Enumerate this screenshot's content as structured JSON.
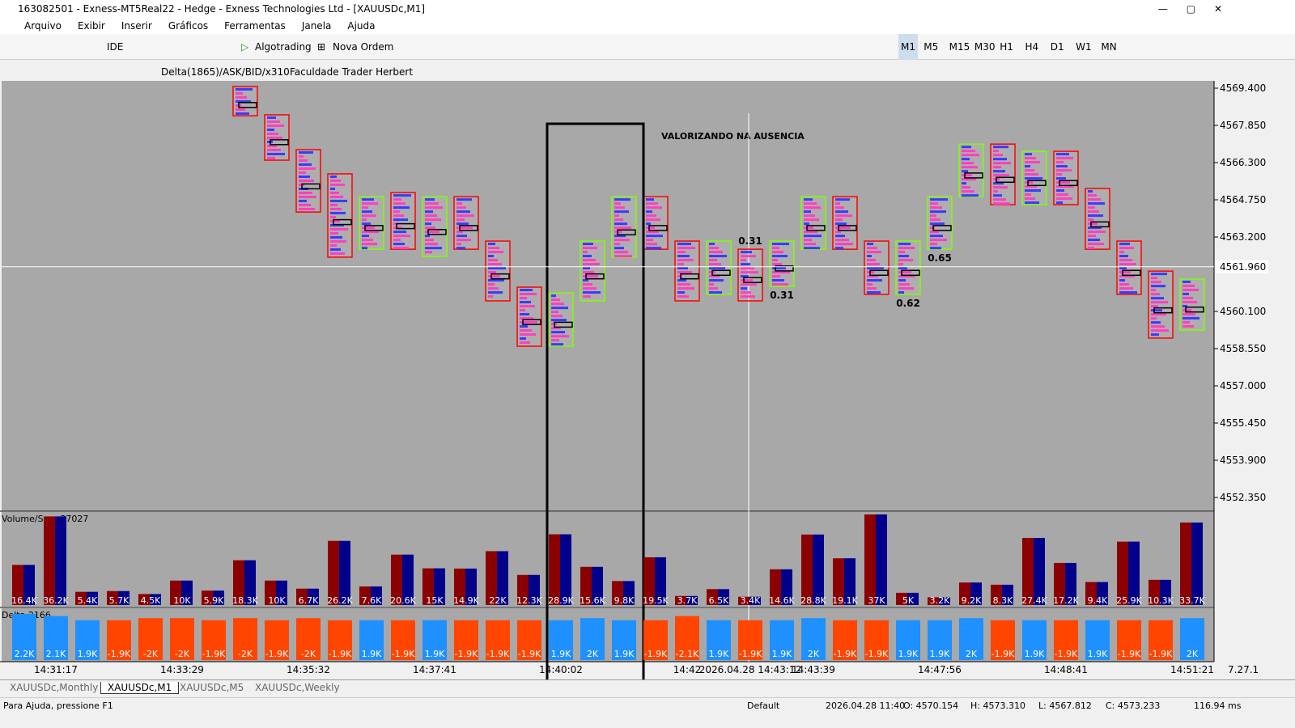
{
  "window_title": "163082501 - Exness-MT5Real22 - Hedge - Exness Technologies Ltd - [XAUUSDc,M1]",
  "menu": [
    "Arquivo",
    "Exibir",
    "Inserir",
    "Gráficos",
    "Ferramentas",
    "Janela",
    "Ajuda"
  ],
  "toolbar": {
    "ide": "IDE",
    "algotrading": "Algotrading",
    "new_order": "Nova Ordem",
    "timeframes": [
      "M1",
      "M5",
      "M15",
      "M30",
      "H1",
      "H4",
      "D1",
      "W1",
      "MN"
    ]
  },
  "indicator_line": [
    "Delta(1865)/ASK/BID/x310",
    "Faculdade Trader Herbert"
  ],
  "price_axis": {
    "ticks": [
      {
        "value": 4569.4,
        "label": "4569.400"
      },
      {
        "value": 4567.85,
        "label": "4567.850"
      },
      {
        "value": 4566.3,
        "label": "4566.300"
      },
      {
        "value": 4564.75,
        "label": "4564.750"
      },
      {
        "value": 4563.2,
        "label": "4563.200"
      },
      {
        "value": 4560.1,
        "label": "4560.100"
      },
      {
        "value": 4558.55,
        "label": "4558.550"
      },
      {
        "value": 4557.0,
        "label": "4557.000"
      },
      {
        "value": 4555.45,
        "label": "4555.450"
      },
      {
        "value": 4553.9,
        "label": "4553.900"
      },
      {
        "value": 4552.35,
        "label": "4552.350"
      }
    ],
    "current": {
      "value": 4561.96,
      "label": "4561.960"
    }
  },
  "annotation": "VALORIZANDO NA AUSENCIA",
  "ratios": [
    {
      "column": 23,
      "text": "0.31",
      "pos": "above"
    },
    {
      "column": 24,
      "text": "0.31",
      "pos": "below"
    },
    {
      "column": 28,
      "text": "0.62",
      "pos": "below"
    },
    {
      "column": 29,
      "text": "0.65",
      "pos": "below"
    }
  ],
  "candles": [
    null,
    null,
    null,
    null,
    null,
    null,
    null,
    {
      "open": 4569.47,
      "close": 4568.25
    },
    {
      "open": 4568.29,
      "close": 4566.4
    },
    {
      "open": 4566.84,
      "close": 4564.24
    },
    {
      "open": 4565.83,
      "close": 4562.36
    },
    {
      "open": 4562.69,
      "close": 4564.88
    },
    {
      "open": 4565.05,
      "close": 4562.69
    },
    {
      "open": 4562.39,
      "close": 4564.88
    },
    {
      "open": 4564.88,
      "close": 4562.69
    },
    {
      "open": 4563.03,
      "close": 4560.54
    },
    {
      "open": 4561.11,
      "close": 4558.65
    },
    {
      "open": 4558.65,
      "close": 4560.87
    },
    {
      "open": 4560.54,
      "close": 4563.03
    },
    {
      "open": 4562.36,
      "close": 4564.88
    },
    {
      "open": 4564.88,
      "close": 4562.69
    },
    {
      "open": 4563.03,
      "close": 4560.54
    },
    {
      "open": 4560.81,
      "close": 4563.03
    },
    {
      "open": 4562.69,
      "close": 4560.54
    },
    {
      "open": 4561.14,
      "close": 4563.03
    },
    {
      "open": 4562.69,
      "close": 4564.88
    },
    {
      "open": 4564.88,
      "close": 4562.69
    },
    {
      "open": 4563.03,
      "close": 4560.81
    },
    {
      "open": 4560.81,
      "close": 4563.03
    },
    {
      "open": 4562.69,
      "close": 4564.88
    },
    {
      "open": 4564.88,
      "close": 4567.07
    },
    {
      "open": 4567.07,
      "close": 4564.55
    },
    {
      "open": 4564.55,
      "close": 4566.77
    },
    {
      "open": 4566.77,
      "close": 4564.55
    },
    {
      "open": 4565.22,
      "close": 4562.69
    },
    {
      "open": 4563.03,
      "close": 4560.81
    },
    {
      "open": 4561.78,
      "close": 4558.99
    },
    {
      "open": 4559.32,
      "close": 4561.45
    }
  ],
  "volume": {
    "label": "Volume/Sep.,37027",
    "values": [
      16400,
      36200,
      5400,
      5700,
      4500,
      10000,
      5900,
      18300,
      10000,
      6700,
      26200,
      7600,
      20600,
      15000,
      14900,
      22000,
      12300,
      28900,
      15600,
      9800,
      19500,
      3700,
      6500,
      3400,
      14600,
      28800,
      19100,
      37000,
      5000,
      3200,
      9200,
      8300,
      27400,
      17200,
      9400,
      25900,
      10300,
      33700
    ],
    "value_labels": [
      "16.4K",
      "36.2K",
      "5.4K",
      "5.7K",
      "4.5K",
      "10K",
      "5.9K",
      "18.3K",
      "10K",
      "6.7K",
      "26.2K",
      "7.6K",
      "20.6K",
      "15K",
      "14.9K",
      "22K",
      "12.3K",
      "28.9K",
      "15.6K",
      "9.8K",
      "19.5K",
      "3.7K",
      "6.5K",
      "3.4K",
      "14.6K",
      "28.8K",
      "19.1K",
      "37K",
      "5K",
      "3.2K",
      "9.2K",
      "8.3K",
      "27.4K",
      "17.2K",
      "9.4K",
      "25.9K",
      "10.3K",
      "33.7K"
    ]
  },
  "delta": {
    "label": "Delta,2166",
    "values": [
      2200,
      2100,
      1900,
      -1900,
      -2000,
      -2000,
      -1900,
      -2000,
      -1900,
      -2000,
      -1900,
      1900,
      -1900,
      1900,
      -1900,
      -1900,
      -1900,
      1900,
      2000,
      1900,
      -1900,
      -2100,
      1900,
      -1900,
      1900,
      2000,
      -1900,
      -1900,
      1900,
      1900,
      2000,
      -1900,
      1900,
      -1900,
      1900,
      -1900,
      -1900,
      2000
    ],
    "value_labels": [
      "2.2K",
      "2.1K",
      "1.9K",
      "-1.9K",
      "-2K",
      "-2K",
      "-1.9K",
      "-2K",
      "-1.9K",
      "-2K",
      "-1.9K",
      "1.9K",
      "-1.9K",
      "1.9K",
      "-1.9K",
      "-1.9K",
      "-1.9K",
      "1.9K",
      "2K",
      "1.9K",
      "-1.9K",
      "-2.1K",
      "1.9K",
      "-1.9K",
      "1.9K",
      "2K",
      "-1.9K",
      "-1.9K",
      "1.9K",
      "1.9K",
      "2K",
      "-1.9K",
      "1.9K",
      "-1.9K",
      "1.9K",
      "-1.9K",
      "-1.9K",
      "2K"
    ]
  },
  "time_axis": [
    {
      "column": 1,
      "text": "14:31:17"
    },
    {
      "column": 5,
      "text": "14:33:29"
    },
    {
      "column": 9,
      "text": "14:35:32"
    },
    {
      "column": 13,
      "text": "14:37:41"
    },
    {
      "column": 17,
      "text": "14:40:02"
    },
    {
      "column": 21,
      "text": "14:42"
    },
    {
      "column": 23,
      "text": "2026.04.28 14:43:12"
    },
    {
      "column": 25,
      "text": "14:43:39"
    },
    {
      "column": 29,
      "text": "14:47:56"
    },
    {
      "column": 33,
      "text": "14:48:41"
    },
    {
      "column": 37,
      "text": "14:51:21"
    }
  ],
  "time_axis_right": "7.27.1",
  "tabs": [
    "XAUUSDc,Monthly",
    "XAUUSDc,M1",
    "XAUUSDc,M5",
    "XAUUSDc,Weekly"
  ],
  "active_tab": 1,
  "status": {
    "help": "Para Ajuda, pressione F1",
    "profile": "Default",
    "time": "2026.04.28 11:40",
    "open": "O: 4570.154",
    "high": "H: 4573.310",
    "low": "L: 4567.812",
    "close": "C: 4573.233",
    "ping": "116.94 ms"
  }
}
